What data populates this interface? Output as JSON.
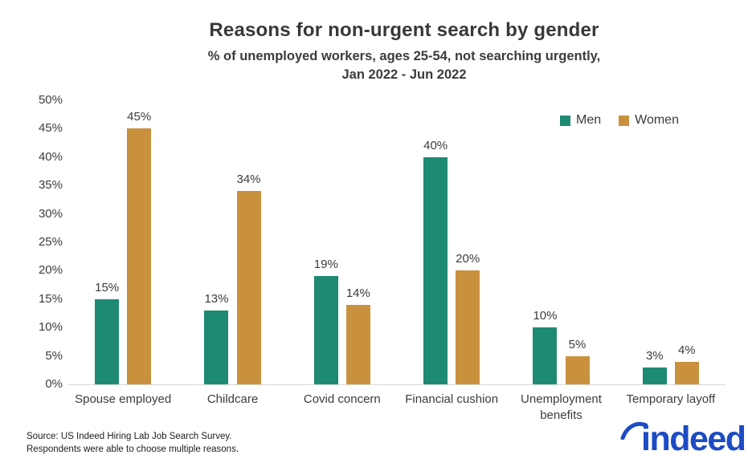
{
  "chart_data": {
    "type": "bar",
    "title": "Reasons for non-urgent search by gender",
    "subtitle_line1": "% of unemployed workers, ages 25-54, not searching urgently,",
    "subtitle_line2": "Jan 2022 - Jun 2022",
    "categories": [
      "Spouse employed",
      "Childcare",
      "Covid concern",
      "Financial cushion",
      "Unemployment benefits",
      "Temporary layoff"
    ],
    "series": [
      {
        "name": "Men",
        "color": "#1E8A74",
        "values": [
          15,
          13,
          19,
          40,
          10,
          3
        ]
      },
      {
        "name": "Women",
        "color": "#C9913E",
        "values": [
          45,
          34,
          14,
          20,
          5,
          4
        ]
      }
    ],
    "ylim": [
      0,
      50
    ],
    "ytick_step": 5,
    "ytick_labels": [
      "0%",
      "5%",
      "10%",
      "15%",
      "20%",
      "25%",
      "30%",
      "35%",
      "40%",
      "45%",
      "50%"
    ],
    "value_label_suffix": "%",
    "legend_position": "top-right",
    "grid": false
  },
  "footer": {
    "source_line1": "Source: US Indeed Hiring Lab Job Search Survey.",
    "source_line2": "Respondents were able to choose multiple reasons.",
    "logo_text": "indeed",
    "logo_color": "#1D4BC4"
  }
}
